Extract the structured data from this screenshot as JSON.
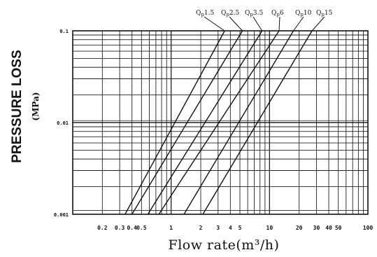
{
  "chart_data": {
    "type": "line",
    "xlabel": "Flow rate(m³/h)",
    "ylabel": "PRESSURE LOSS",
    "ylabel_unit": "(MPa)",
    "x_scale": "log",
    "y_scale": "log",
    "xlim": [
      0.1,
      100
    ],
    "ylim": [
      0.001,
      0.1
    ],
    "grid": true,
    "x_ticks": [
      {
        "value": 0.2,
        "label": "0.2"
      },
      {
        "value": 0.3,
        "label": "0.3"
      },
      {
        "value": 0.4,
        "label": "0.4"
      },
      {
        "value": 0.5,
        "label": "0.5"
      },
      {
        "value": 1,
        "label": "1"
      },
      {
        "value": 2,
        "label": "2"
      },
      {
        "value": 3,
        "label": "3"
      },
      {
        "value": 4,
        "label": "4"
      },
      {
        "value": 5,
        "label": "5"
      },
      {
        "value": 10,
        "label": "10"
      },
      {
        "value": 20,
        "label": "20"
      },
      {
        "value": 30,
        "label": "30"
      },
      {
        "value": 40,
        "label": "40"
      },
      {
        "value": 50,
        "label": "50"
      },
      {
        "value": 100,
        "label": "100"
      }
    ],
    "y_ticks": [
      {
        "value": 0.1,
        "label": "0.1"
      },
      {
        "value": 0.01,
        "label": "0.01"
      },
      {
        "value": 0.001,
        "label": "0.001"
      }
    ],
    "series": [
      {
        "name": "Qp1.5",
        "x": [
          0.34,
          3.5
        ],
        "y": [
          0.001,
          0.1
        ]
      },
      {
        "name": "Qp2.5",
        "x": [
          0.4,
          5.3
        ],
        "y": [
          0.001,
          0.1
        ]
      },
      {
        "name": "Qp3.5",
        "x": [
          0.58,
          8.4
        ],
        "y": [
          0.001,
          0.1
        ]
      },
      {
        "name": "Qp6",
        "x": [
          0.75,
          12.5
        ],
        "y": [
          0.001,
          0.1
        ]
      },
      {
        "name": "Qp10",
        "x": [
          1.35,
          17.5
        ],
        "y": [
          0.001,
          0.1
        ]
      },
      {
        "name": "Qp15",
        "x": [
          2.1,
          27
        ],
        "y": [
          0.001,
          0.1
        ]
      }
    ]
  }
}
